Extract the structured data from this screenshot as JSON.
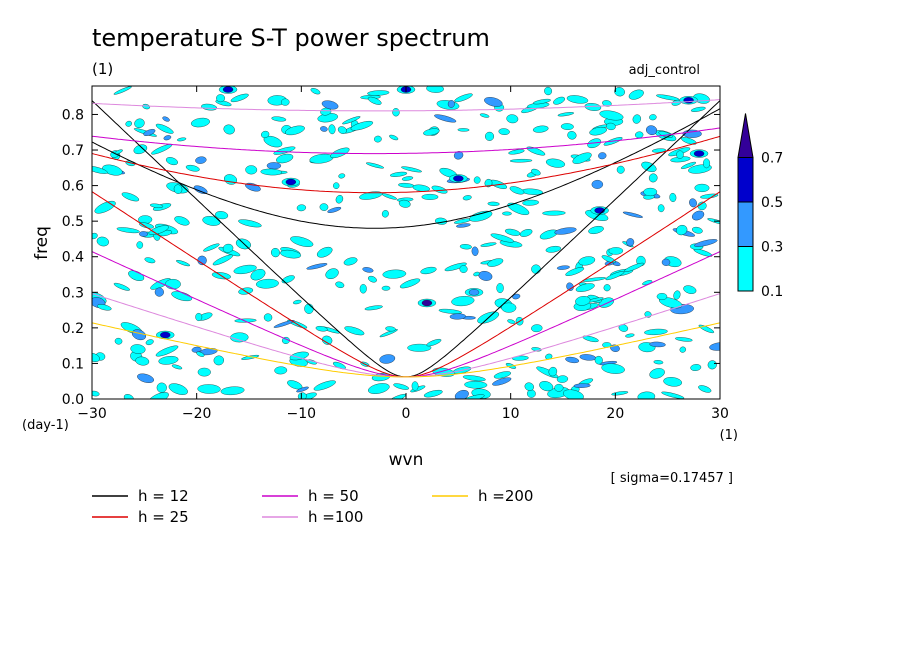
{
  "chart_data": {
    "type": "contour",
    "title": "temperature S-T power spectrum",
    "subtitle_left": "(1)",
    "subtitle_right": "adj_control",
    "xlabel": "wvn",
    "ylabel": "freq",
    "x_unit": "(1)",
    "y_unit": "(day-1)",
    "xlim": [
      -30,
      30
    ],
    "ylim": [
      0,
      0.88
    ],
    "xticks": [
      -30,
      -20,
      -10,
      0,
      10,
      20,
      30
    ],
    "yticks": [
      0.0,
      0.1,
      0.2,
      0.3,
      0.4,
      0.5,
      0.6,
      0.7,
      0.8
    ],
    "xtick_labels": [
      "-30",
      "-20",
      "-10",
      "0",
      "10",
      "20",
      "30"
    ],
    "ytick_labels": [
      "0.0",
      "0.1",
      "0.2",
      "0.3",
      "0.4",
      "0.5",
      "0.6",
      "0.7",
      "0.8"
    ],
    "sigma_note": "[ sigma=0.17457 ]",
    "colorbar": {
      "levels": [
        "0.1",
        "0.3",
        "0.5",
        "0.7"
      ],
      "colors": [
        "#00ffff",
        "#3399ff",
        "#0000cc",
        "#330099"
      ]
    },
    "dispersion_curves": [
      {
        "label": "h = 12",
        "h": 12,
        "color": "#000000"
      },
      {
        "label": "h = 25",
        "h": 25,
        "color": "#dd0000"
      },
      {
        "label": "h = 50",
        "h": 50,
        "color": "#cc00cc"
      },
      {
        "label": "h =100",
        "h": 100,
        "color": "#dd88dd"
      },
      {
        "label": "h =200",
        "h": 200,
        "color": "#ffcc00"
      }
    ],
    "highlight_patches": [
      {
        "x": -23,
        "y": 0.18,
        "level": 0.5
      },
      {
        "x": -11,
        "y": 0.61,
        "level": 0.5
      },
      {
        "x": 2,
        "y": 0.27,
        "level": 0.7
      },
      {
        "x": 6.5,
        "y": 0.3,
        "level": 0.3
      },
      {
        "x": 5,
        "y": 0.62,
        "level": 0.5
      },
      {
        "x": 27,
        "y": 0.84,
        "level": 0.5
      },
      {
        "x": 18.5,
        "y": 0.53,
        "level": 0.5
      },
      {
        "x": 0,
        "y": 0.87,
        "level": 0.5
      },
      {
        "x": -17,
        "y": 0.87,
        "level": 0.5
      },
      {
        "x": 28,
        "y": 0.69,
        "level": 0.5
      }
    ]
  }
}
